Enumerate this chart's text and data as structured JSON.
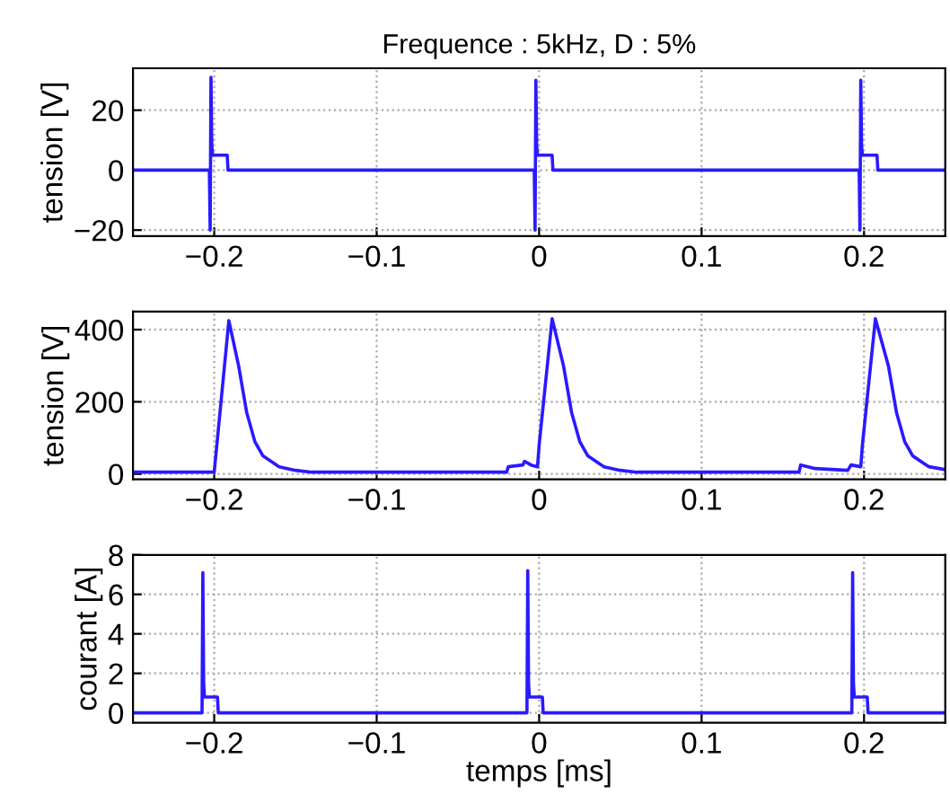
{
  "chart_data": [
    {
      "type": "line",
      "title": "Frequence : 5kHz, D : 5%",
      "ylabel": "tension [V]",
      "grid": true,
      "marker": "none",
      "line_style": "solid",
      "xlim": [
        -0.25,
        0.25
      ],
      "xticks": [
        -0.2,
        -0.1,
        0,
        0.1,
        0.2
      ],
      "ylim": [
        -22,
        34
      ],
      "yticks": [
        -20,
        0,
        20
      ],
      "series": [
        {
          "color": "#2a1aff",
          "x": [
            -0.25,
            -0.203,
            -0.2025,
            -0.202,
            -0.2015,
            -0.201,
            -0.192,
            -0.1915,
            -0.003,
            -0.0025,
            -0.002,
            -0.0015,
            -0.001,
            0.008,
            0.0085,
            0.197,
            0.1975,
            0.198,
            0.1985,
            0.199,
            0.208,
            0.2085,
            0.25
          ],
          "values": [
            0,
            0,
            -20,
            31,
            8,
            5,
            5,
            0,
            0,
            -20,
            30,
            8,
            5,
            5,
            0,
            0,
            -20,
            30,
            8,
            5,
            5,
            0,
            0
          ]
        }
      ]
    },
    {
      "type": "line",
      "ylabel": "tension [V]",
      "grid": true,
      "marker": "none",
      "line_style": "solid",
      "xlim": [
        -0.25,
        0.25
      ],
      "xticks": [
        -0.2,
        -0.1,
        0,
        0.1,
        0.2
      ],
      "ylim": [
        -15,
        450
      ],
      "yticks": [
        0,
        200,
        400
      ],
      "series": [
        {
          "color": "#2a1aff",
          "x": [
            -0.25,
            -0.2,
            -0.191,
            -0.185,
            -0.18,
            -0.175,
            -0.17,
            -0.16,
            -0.15,
            -0.14,
            -0.02,
            -0.019,
            -0.01,
            -0.009,
            -0.005,
            -0.001,
            0.0,
            0.008,
            0.015,
            0.02,
            0.025,
            0.03,
            0.04,
            0.05,
            0.06,
            0.16,
            0.161,
            0.17,
            0.19,
            0.192,
            0.198,
            0.199,
            0.207,
            0.215,
            0.22,
            0.225,
            0.23,
            0.24,
            0.25
          ],
          "values": [
            5,
            5,
            425,
            300,
            170,
            90,
            50,
            20,
            10,
            5,
            5,
            20,
            25,
            35,
            25,
            20,
            80,
            430,
            300,
            170,
            90,
            50,
            20,
            10,
            5,
            5,
            25,
            15,
            10,
            25,
            20,
            80,
            430,
            300,
            170,
            90,
            50,
            20,
            12
          ]
        }
      ]
    },
    {
      "type": "line",
      "xlabel": "temps [ms]",
      "ylabel": "courant [A]",
      "grid": true,
      "marker": "none",
      "line_style": "solid",
      "xlim": [
        -0.25,
        0.25
      ],
      "xticks": [
        -0.2,
        -0.1,
        0,
        0.1,
        0.2
      ],
      "ylim": [
        -0.5,
        8
      ],
      "yticks": [
        0,
        2,
        4,
        6,
        8
      ],
      "series": [
        {
          "color": "#2a1aff",
          "x": [
            -0.25,
            -0.2075,
            -0.207,
            -0.2065,
            -0.206,
            -0.198,
            -0.1975,
            -0.0075,
            -0.007,
            -0.0065,
            -0.006,
            0.002,
            0.0025,
            0.1925,
            0.193,
            0.1935,
            0.194,
            0.202,
            0.2025,
            0.25
          ],
          "values": [
            0,
            0,
            7.1,
            1.5,
            0.8,
            0.8,
            0,
            0,
            7.2,
            1.5,
            0.8,
            0.8,
            0,
            0,
            7.1,
            1.5,
            0.8,
            0.8,
            0,
            0
          ]
        }
      ]
    }
  ]
}
